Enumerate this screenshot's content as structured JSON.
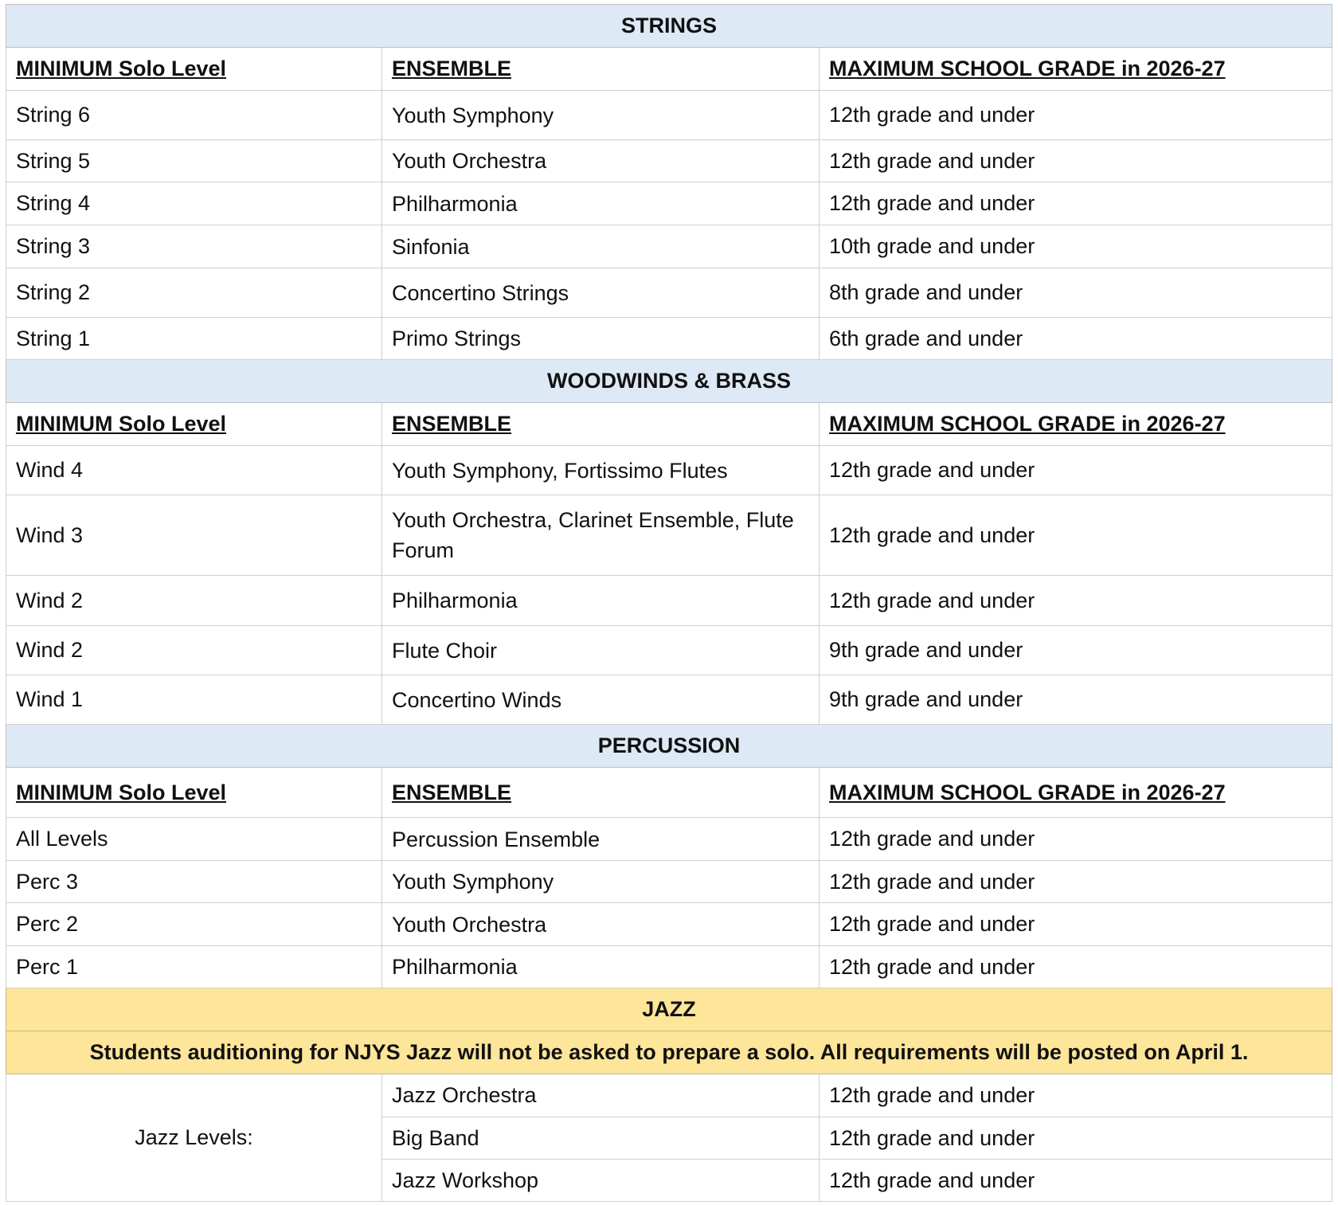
{
  "column_headers": [
    "MINIMUM Solo Level",
    "ENSEMBLE",
    "MAXIMUM SCHOOL GRADE in 2026-27"
  ],
  "sections": [
    {
      "title": "STRINGS",
      "rows": [
        [
          "String 6",
          "Youth Symphony",
          "12th grade and under"
        ],
        [
          "String 5",
          "Youth Orchestra",
          "12th grade and under"
        ],
        [
          "String 4",
          "Philharmonia",
          "12th grade and under"
        ],
        [
          "String 3",
          "Sinfonia",
          "10th grade and under"
        ],
        [
          "String 2",
          "Concertino Strings",
          "8th grade and under"
        ],
        [
          "String 1",
          "Primo Strings",
          "6th grade and under"
        ]
      ]
    },
    {
      "title": "WOODWINDS & BRASS",
      "rows": [
        [
          "Wind 4",
          "Youth Symphony, Fortissimo Flutes",
          "12th grade and under"
        ],
        [
          "Wind 3",
          "Youth Orchestra, Clarinet Ensemble, Flute Forum",
          "12th grade and under"
        ],
        [
          "Wind 2",
          "Philharmonia",
          "12th grade and under"
        ],
        [
          "Wind 2",
          "Flute Choir",
          "9th grade and under"
        ],
        [
          "Wind 1",
          "Concertino Winds",
          "9th grade and under"
        ]
      ]
    },
    {
      "title": "PERCUSSION",
      "rows": [
        [
          "All Levels",
          "Percussion Ensemble",
          "12th grade and under"
        ],
        [
          "Perc 3",
          "Youth Symphony",
          "12th grade and under"
        ],
        [
          "Perc 2",
          "Youth Orchestra",
          "12th grade and under"
        ],
        [
          "Perc 1",
          "Philharmonia",
          "12th grade and under"
        ]
      ]
    }
  ],
  "jazz": {
    "title": "JAZZ",
    "note": "Students auditioning for NJYS Jazz will not be asked to prepare a solo. All requirements will be posted on April 1.",
    "levels_label": "Jazz Levels:",
    "rows": [
      [
        "Jazz Orchestra",
        "12th grade and under"
      ],
      [
        "Big Band",
        "12th grade and under"
      ],
      [
        "Jazz Workshop",
        "12th grade and under"
      ]
    ]
  },
  "colors": {
    "section_header_bg": "#dde9f5",
    "jazz_bg": "#fde59a"
  }
}
